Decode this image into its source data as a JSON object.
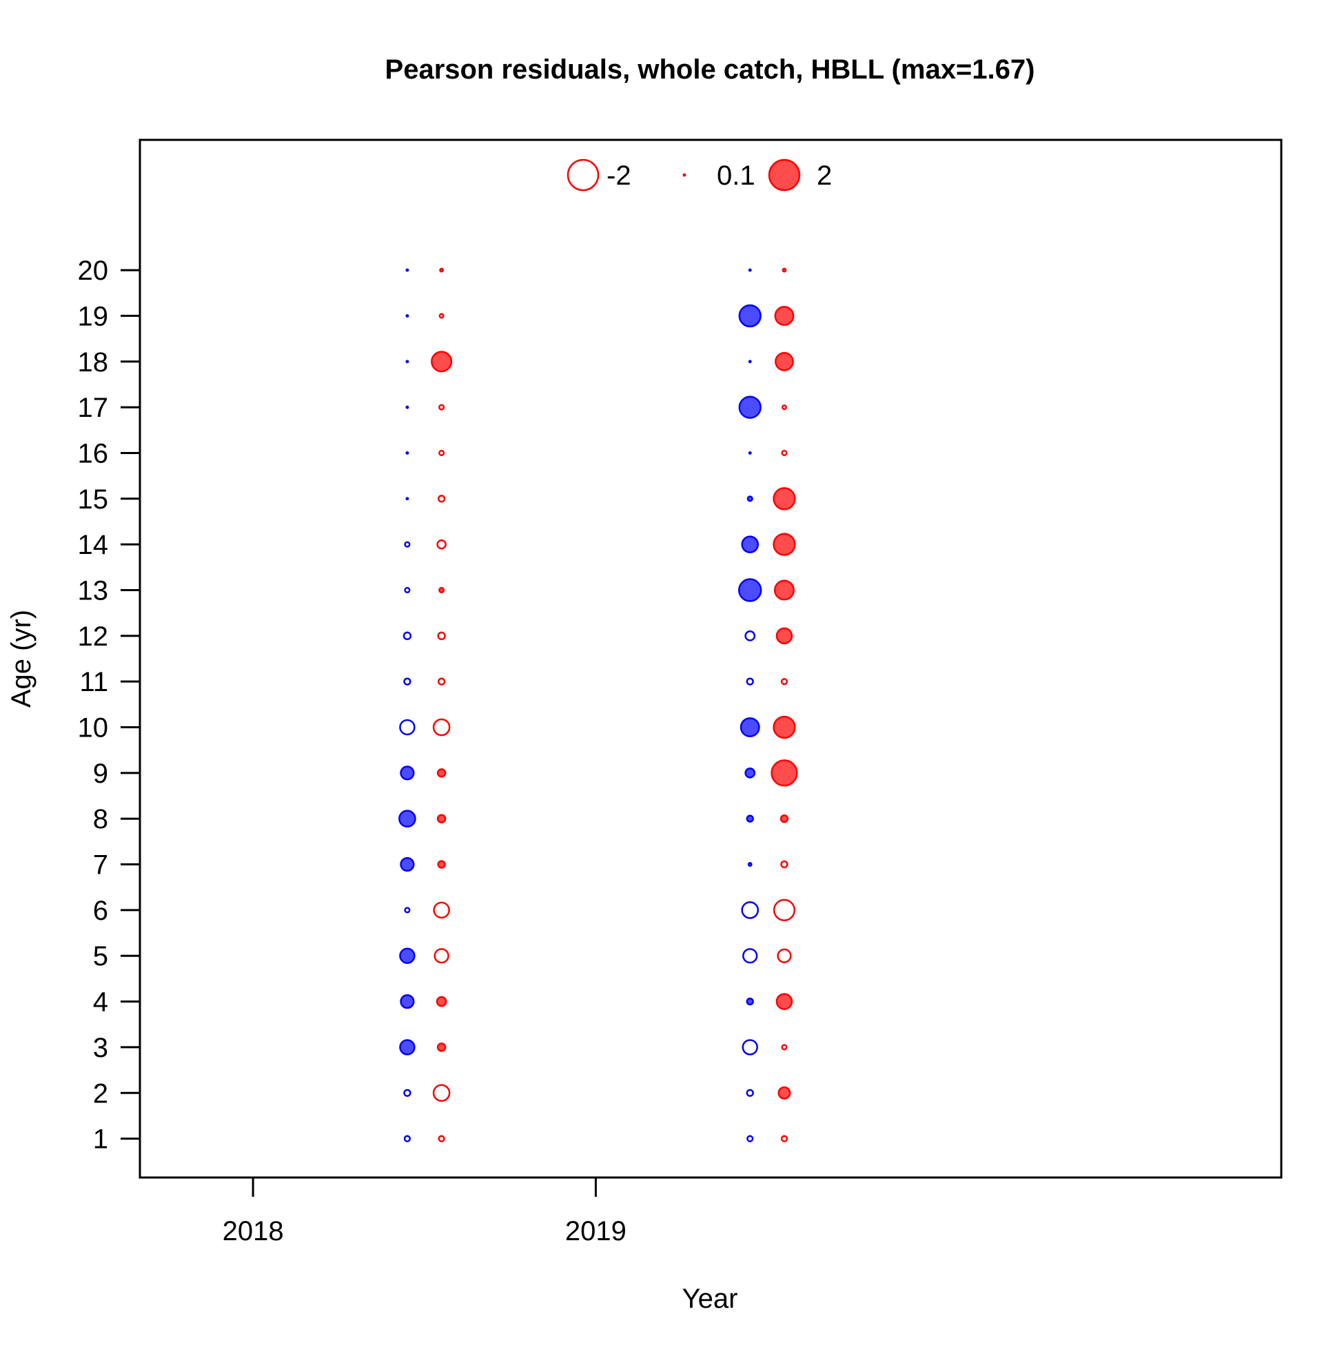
{
  "chart_data": {
    "type": "bubble",
    "title": "Pearson residuals, whole catch, HBLL (max=1.67)",
    "xlabel": "Year",
    "ylabel": "Age (yr)",
    "x_ticks": [
      "2018",
      "2019"
    ],
    "y_ticks": [
      "1",
      "2",
      "3",
      "4",
      "5",
      "6",
      "7",
      "8",
      "9",
      "10",
      "11",
      "12",
      "13",
      "14",
      "15",
      "16",
      "17",
      "18",
      "19",
      "20"
    ],
    "xlim": [
      2017.67,
      2021.0
    ],
    "ylim": [
      0.15,
      22.85
    ],
    "grid": false,
    "legend_position": "top-center",
    "colors": {
      "series_a": "#0000ff",
      "series_b": "#ff0000",
      "frame": "#000000"
    },
    "legend": [
      {
        "label": "-2",
        "value": -2,
        "filled": false
      },
      {
        "label": "0.1",
        "value": 0.1,
        "filled": true
      },
      {
        "label": "2",
        "value": 2,
        "filled": true
      }
    ],
    "series": [
      {
        "color": "#0000ff",
        "points": [
          {
            "x": 2018.45,
            "age": 1,
            "residual": -0.35
          },
          {
            "x": 2018.45,
            "age": 2,
            "residual": -0.4
          },
          {
            "x": 2018.45,
            "age": 3,
            "residual": 0.95
          },
          {
            "x": 2018.45,
            "age": 4,
            "residual": 0.85
          },
          {
            "x": 2018.45,
            "age": 5,
            "residual": 0.95
          },
          {
            "x": 2018.45,
            "age": 6,
            "residual": -0.3
          },
          {
            "x": 2018.45,
            "age": 7,
            "residual": 0.85
          },
          {
            "x": 2018.45,
            "age": 8,
            "residual": 1.05
          },
          {
            "x": 2018.45,
            "age": 9,
            "residual": 0.85
          },
          {
            "x": 2018.45,
            "age": 10,
            "residual": -0.95
          },
          {
            "x": 2018.45,
            "age": 11,
            "residual": -0.4
          },
          {
            "x": 2018.45,
            "age": 12,
            "residual": -0.45
          },
          {
            "x": 2018.45,
            "age": 13,
            "residual": -0.3
          },
          {
            "x": 2018.45,
            "age": 14,
            "residual": -0.3
          },
          {
            "x": 2018.45,
            "age": 15,
            "residual": 0.1
          },
          {
            "x": 2018.45,
            "age": 16,
            "residual": 0.1
          },
          {
            "x": 2018.45,
            "age": 17,
            "residual": 0.1
          },
          {
            "x": 2018.45,
            "age": 18,
            "residual": 0.1
          },
          {
            "x": 2018.45,
            "age": 19,
            "residual": 0.1
          },
          {
            "x": 2018.45,
            "age": 20,
            "residual": 0.1
          },
          {
            "x": 2019.45,
            "age": 1,
            "residual": -0.35
          },
          {
            "x": 2019.45,
            "age": 2,
            "residual": -0.4
          },
          {
            "x": 2019.45,
            "age": 3,
            "residual": -0.95
          },
          {
            "x": 2019.45,
            "age": 4,
            "residual": 0.4
          },
          {
            "x": 2019.45,
            "age": 5,
            "residual": -0.9
          },
          {
            "x": 2019.45,
            "age": 6,
            "residual": -1.05
          },
          {
            "x": 2019.45,
            "age": 7,
            "residual": 0.2
          },
          {
            "x": 2019.45,
            "age": 8,
            "residual": 0.4
          },
          {
            "x": 2019.45,
            "age": 9,
            "residual": 0.6
          },
          {
            "x": 2019.45,
            "age": 10,
            "residual": 1.2
          },
          {
            "x": 2019.45,
            "age": 11,
            "residual": -0.4
          },
          {
            "x": 2019.45,
            "age": 12,
            "residual": -0.6
          },
          {
            "x": 2019.45,
            "age": 13,
            "residual": 1.45
          },
          {
            "x": 2019.45,
            "age": 14,
            "residual": 1.05
          },
          {
            "x": 2019.45,
            "age": 15,
            "residual": 0.3
          },
          {
            "x": 2019.45,
            "age": 16,
            "residual": 0.1
          },
          {
            "x": 2019.45,
            "age": 17,
            "residual": 1.4
          },
          {
            "x": 2019.45,
            "age": 18,
            "residual": 0.1
          },
          {
            "x": 2019.45,
            "age": 19,
            "residual": 1.4
          },
          {
            "x": 2019.45,
            "age": 20,
            "residual": 0.1
          }
        ]
      },
      {
        "color": "#ff0000",
        "points": [
          {
            "x": 2018.55,
            "age": 1,
            "residual": -0.35
          },
          {
            "x": 2018.55,
            "age": 2,
            "residual": -1.05
          },
          {
            "x": 2018.55,
            "age": 3,
            "residual": 0.5
          },
          {
            "x": 2018.55,
            "age": 4,
            "residual": 0.6
          },
          {
            "x": 2018.55,
            "age": 5,
            "residual": -0.9
          },
          {
            "x": 2018.55,
            "age": 6,
            "residual": -1.0
          },
          {
            "x": 2018.55,
            "age": 7,
            "residual": 0.45
          },
          {
            "x": 2018.55,
            "age": 8,
            "residual": 0.5
          },
          {
            "x": 2018.55,
            "age": 9,
            "residual": 0.5
          },
          {
            "x": 2018.55,
            "age": 10,
            "residual": -1.05
          },
          {
            "x": 2018.55,
            "age": 11,
            "residual": -0.4
          },
          {
            "x": 2018.55,
            "age": 12,
            "residual": -0.45
          },
          {
            "x": 2018.55,
            "age": 13,
            "residual": 0.3
          },
          {
            "x": 2018.55,
            "age": 14,
            "residual": -0.55
          },
          {
            "x": 2018.55,
            "age": 15,
            "residual": -0.4
          },
          {
            "x": 2018.55,
            "age": 16,
            "residual": -0.3
          },
          {
            "x": 2018.55,
            "age": 17,
            "residual": -0.3
          },
          {
            "x": 2018.55,
            "age": 18,
            "residual": 1.3
          },
          {
            "x": 2018.55,
            "age": 19,
            "residual": -0.25
          },
          {
            "x": 2018.55,
            "age": 20,
            "residual": 0.2
          },
          {
            "x": 2019.55,
            "age": 1,
            "residual": -0.35
          },
          {
            "x": 2019.55,
            "age": 2,
            "residual": 0.75
          },
          {
            "x": 2019.55,
            "age": 3,
            "residual": -0.3
          },
          {
            "x": 2019.55,
            "age": 4,
            "residual": 1.0
          },
          {
            "x": 2019.55,
            "age": 5,
            "residual": -0.85
          },
          {
            "x": 2019.55,
            "age": 6,
            "residual": -1.35
          },
          {
            "x": 2019.55,
            "age": 7,
            "residual": -0.4
          },
          {
            "x": 2019.55,
            "age": 8,
            "residual": 0.45
          },
          {
            "x": 2019.55,
            "age": 9,
            "residual": 1.67
          },
          {
            "x": 2019.55,
            "age": 10,
            "residual": 1.4
          },
          {
            "x": 2019.55,
            "age": 11,
            "residual": -0.35
          },
          {
            "x": 2019.55,
            "age": 12,
            "residual": 1.0
          },
          {
            "x": 2019.55,
            "age": 13,
            "residual": 1.25
          },
          {
            "x": 2019.55,
            "age": 14,
            "residual": 1.4
          },
          {
            "x": 2019.55,
            "age": 15,
            "residual": 1.4
          },
          {
            "x": 2019.55,
            "age": 16,
            "residual": -0.3
          },
          {
            "x": 2019.55,
            "age": 17,
            "residual": -0.25
          },
          {
            "x": 2019.55,
            "age": 18,
            "residual": 1.15
          },
          {
            "x": 2019.55,
            "age": 19,
            "residual": 1.2
          },
          {
            "x": 2019.55,
            "age": 20,
            "residual": 0.2
          }
        ]
      }
    ]
  }
}
